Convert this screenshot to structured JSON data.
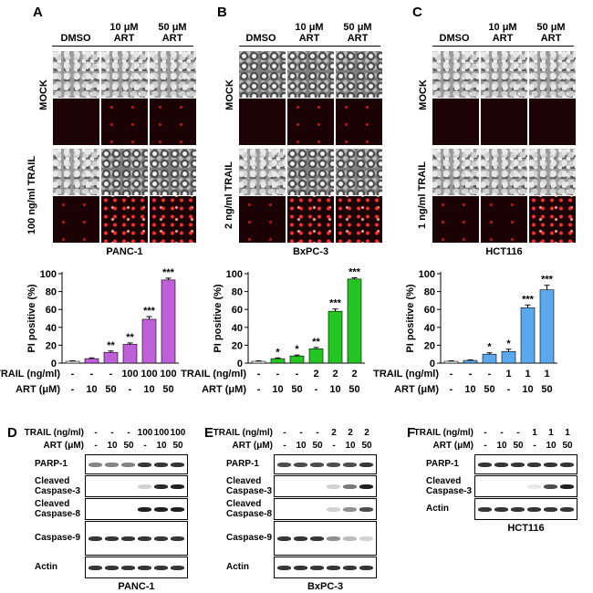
{
  "panels": [
    {
      "letter": "A",
      "col_headers": [
        "DMSO",
        "10 μM\nART",
        "50 μM\nART"
      ],
      "row_labels": [
        "MOCK",
        "100 ng/ml TRAIL"
      ],
      "cell_line": "PANC-1",
      "chart_data": {
        "type": "bar",
        "ylabel": "PI positive (%)",
        "ylim": [
          0,
          100
        ],
        "yticks": [
          0,
          20,
          40,
          60,
          80,
          100
        ],
        "values": [
          2,
          5,
          12,
          21,
          49,
          93
        ],
        "errors": [
          0.5,
          0.8,
          1.5,
          1.5,
          3,
          2
        ],
        "significance": [
          "",
          "",
          "**",
          "**",
          "***",
          "***"
        ],
        "color": "#c060d8",
        "trail_label": "TRAIL (ng/ml)",
        "art_label": "ART (μM)",
        "trail": [
          "-",
          "-",
          "-",
          "100",
          "100",
          "100"
        ],
        "art": [
          "-",
          "10",
          "50",
          "-",
          "10",
          "50"
        ]
      }
    },
    {
      "letter": "B",
      "col_headers": [
        "DMSO",
        "10 μM\nART",
        "50 μM\nART"
      ],
      "row_labels": [
        "MOCK",
        "2 ng/ml TRAIL"
      ],
      "cell_line": "BxPC-3",
      "chart_data": {
        "type": "bar",
        "ylabel": "PI positive (%)",
        "ylim": [
          0,
          100
        ],
        "yticks": [
          0,
          20,
          40,
          60,
          80,
          100
        ],
        "values": [
          2,
          5,
          8,
          16,
          58,
          94
        ],
        "errors": [
          0.5,
          0.8,
          1,
          1.5,
          2.5,
          1.5
        ],
        "significance": [
          "",
          "*",
          "*",
          "**",
          "***",
          "***"
        ],
        "color": "#22c522",
        "trail_label": "TRAIL (ng/ml)",
        "art_label": "ART (μM)",
        "trail": [
          "-",
          "-",
          "-",
          "2",
          "2",
          "2"
        ],
        "art": [
          "-",
          "10",
          "50",
          "-",
          "10",
          "50"
        ]
      }
    },
    {
      "letter": "C",
      "col_headers": [
        "DMSO",
        "10 μM\nART",
        "50 μM\nART"
      ],
      "row_labels": [
        "MOCK",
        "1 ng/ml TRAIL"
      ],
      "cell_line": "HCT116",
      "chart_data": {
        "type": "bar",
        "ylabel": "PI positive (%)",
        "ylim": [
          0,
          100
        ],
        "yticks": [
          0,
          20,
          40,
          60,
          80,
          100
        ],
        "values": [
          2,
          3,
          10,
          13,
          62,
          82
        ],
        "errors": [
          0.5,
          0.6,
          1.5,
          2.5,
          3,
          5
        ],
        "significance": [
          "",
          "",
          "*",
          "*",
          "***",
          "***"
        ],
        "color": "#5aa8ee",
        "trail_label": "TRAIL (ng/ml)",
        "art_label": "ART (μM)",
        "trail": [
          "-",
          "-",
          "-",
          "1",
          "1",
          "1"
        ],
        "art": [
          "-",
          "10",
          "50",
          "-",
          "10",
          "50"
        ]
      }
    }
  ],
  "blots": [
    {
      "letter": "D",
      "trail_label": "TRAIL (ng/ml)",
      "art_label": "ART (μM)",
      "trail": [
        "-",
        "-",
        "-",
        "100",
        "100",
        "100"
      ],
      "art": [
        "-",
        "10",
        "50",
        "-",
        "10",
        "50"
      ],
      "rows": [
        "PARP-1",
        "Cleaved\nCaspase-3",
        "Cleaved\nCaspase-8",
        "Caspase-9",
        "Actin"
      ],
      "cell_line": "PANC-1"
    },
    {
      "letter": "E",
      "trail_label": "TRAIL (ng/ml)",
      "art_label": "ART (μM)",
      "trail": [
        "-",
        "-",
        "-",
        "2",
        "2",
        "2"
      ],
      "art": [
        "-",
        "10",
        "50",
        "-",
        "10",
        "50"
      ],
      "rows": [
        "PARP-1",
        "Cleaved\nCaspase-3",
        "Cleaved\nCaspase-8",
        "Caspase-9",
        "Actin"
      ],
      "cell_line": "BxPC-3"
    },
    {
      "letter": "F",
      "trail_label": "TRAIL (ng/ml)",
      "art_label": "ART (μM)",
      "trail": [
        "-",
        "-",
        "-",
        "1",
        "1",
        "1"
      ],
      "art": [
        "-",
        "10",
        "50",
        "-",
        "10",
        "50"
      ],
      "rows": [
        "PARP-1",
        "Cleaved\nCaspase-3",
        "Actin"
      ],
      "cell_line": "HCT116"
    }
  ]
}
